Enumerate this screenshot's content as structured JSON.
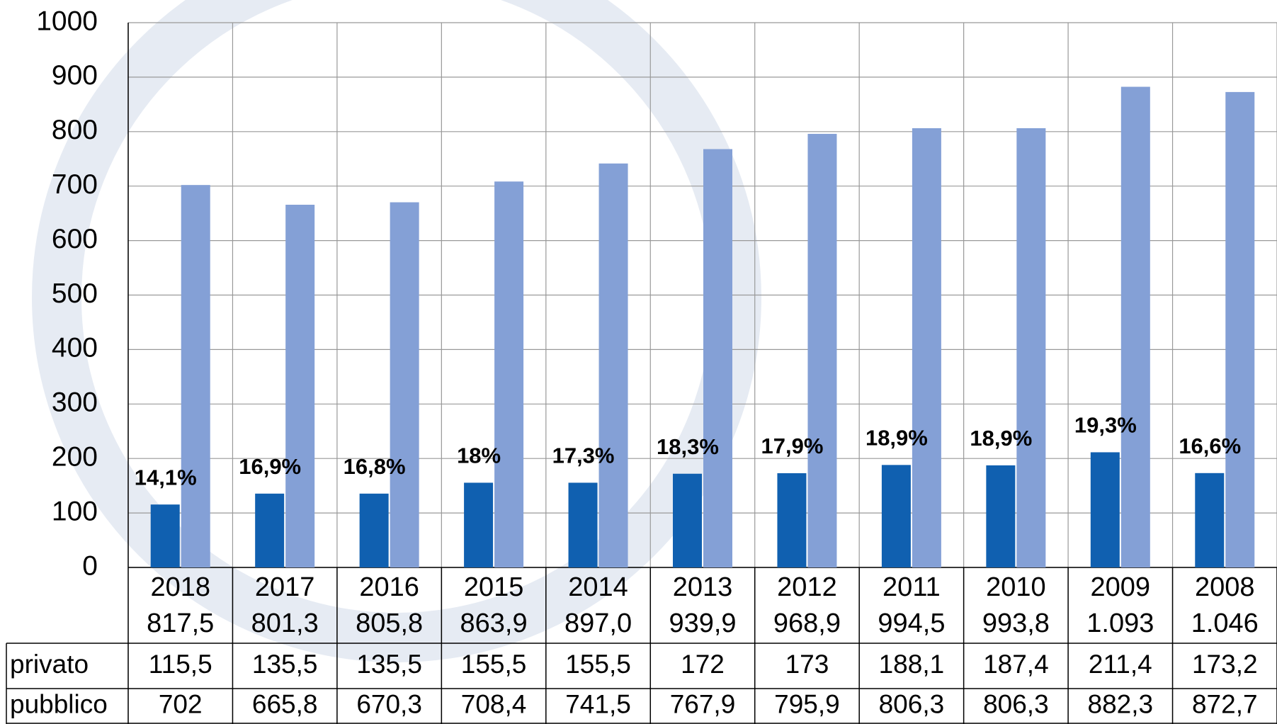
{
  "chart_data": {
    "type": "bar",
    "categories": [
      "2018",
      "2017",
      "2016",
      "2015",
      "2014",
      "2013",
      "2012",
      "2011",
      "2010",
      "2009",
      "2008"
    ],
    "totals": [
      "817,5",
      "801,3",
      "805,8",
      "863,9",
      "897,0",
      "939,9",
      "968,9",
      "994,5",
      "993,8",
      "1.093",
      "1.046"
    ],
    "series": [
      {
        "name": "privato",
        "color": "#1060b0",
        "values": [
          115.5,
          135.5,
          135.5,
          155.5,
          155.5,
          172,
          173,
          188.1,
          187.4,
          211.4,
          173.2
        ],
        "value_labels": [
          "115,5",
          "135,5",
          "135,5",
          "155,5",
          "155,5",
          "172",
          "173",
          "188,1",
          "187,4",
          "211,4",
          "173,2"
        ]
      },
      {
        "name": "pubblico",
        "color": "#84a0d6",
        "values": [
          702,
          665.8,
          670.3,
          708.4,
          741.5,
          767.9,
          795.9,
          806.3,
          806.3,
          882.3,
          872.7
        ],
        "value_labels": [
          "702",
          "665,8",
          "670,3",
          "708,4",
          "741,5",
          "767,9",
          "795,9",
          "806,3",
          "806,3",
          "882,3",
          "872,7"
        ]
      }
    ],
    "annotations": [
      "14,1%",
      "16,9%",
      "16,8%",
      "18%",
      "17,3%",
      "18,3%",
      "17,9%",
      "18,9%",
      "18,9%",
      "19,3%",
      "16,6%"
    ],
    "ylim": [
      0,
      1000
    ],
    "yticks": [
      0,
      100,
      200,
      300,
      400,
      500,
      600,
      700,
      800,
      900,
      1000
    ],
    "grid": true
  }
}
